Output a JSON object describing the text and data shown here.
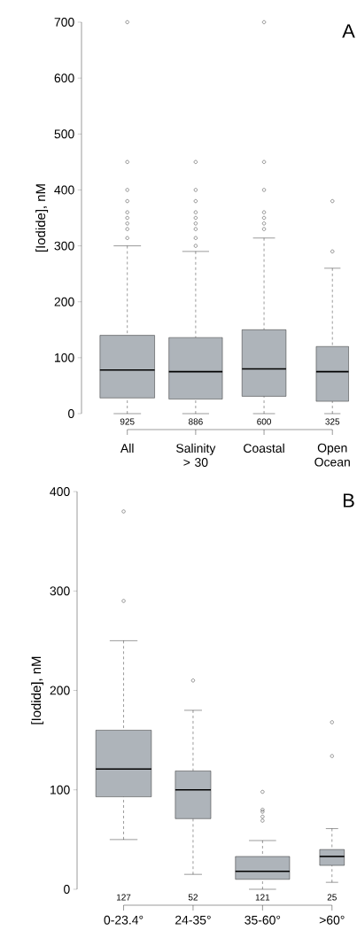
{
  "chart_data": [
    {
      "type": "box",
      "title": "A",
      "ylabel": "[Iodide], nM",
      "categories": [
        "All",
        "Salinity > 30",
        "Coastal",
        "Open Ocean"
      ],
      "color": "#aeb4ba",
      "ylim": [
        0,
        700
      ],
      "yticks": [
        0,
        100,
        200,
        300,
        400,
        500,
        600,
        700
      ],
      "boxes": [
        {
          "low": 0,
          "q1": 28,
          "median": 78,
          "q3": 140,
          "high": 300,
          "outliers": [
            314,
            330,
            340,
            350,
            360,
            380,
            400,
            450,
            700
          ]
        },
        {
          "low": 0,
          "q1": 26,
          "median": 75,
          "q3": 136,
          "high": 290,
          "outliers": [
            300,
            314,
            330,
            340,
            350,
            360,
            380,
            400,
            450
          ]
        },
        {
          "low": 0,
          "q1": 31,
          "median": 80,
          "q3": 150,
          "high": 314,
          "outliers": [
            330,
            340,
            350,
            360,
            400,
            450,
            700
          ]
        },
        {
          "low": 0,
          "q1": 22,
          "median": 75,
          "q3": 120,
          "high": 260,
          "outliers": [
            290,
            380
          ]
        }
      ],
      "annotations": [
        "925",
        "886",
        "600",
        "325"
      ]
    },
    {
      "type": "box",
      "title": "B",
      "ylabel": "[Iodide], nM",
      "categories": [
        "0-23.4°",
        "24-35°",
        "35-60°",
        ">60°"
      ],
      "color": "#aeb4ba",
      "ylim": [
        0,
        400
      ],
      "yticks": [
        0,
        100,
        200,
        300,
        400
      ],
      "boxes": [
        {
          "low": 50,
          "q1": 93,
          "median": 121,
          "q3": 160,
          "high": 250,
          "outliers": [
            290,
            380
          ]
        },
        {
          "low": 15,
          "q1": 71,
          "median": 100,
          "q3": 119,
          "high": 180,
          "outliers": [
            210
          ]
        },
        {
          "low": 0,
          "q1": 10,
          "median": 18,
          "q3": 33,
          "high": 49,
          "outliers": [
            69,
            73,
            78,
            80,
            98
          ]
        },
        {
          "low": 7,
          "q1": 24,
          "median": 33,
          "q3": 40,
          "high": 61,
          "outliers": [
            134,
            168
          ]
        }
      ],
      "annotations": [
        "127",
        "52",
        "121",
        "25"
      ]
    }
  ]
}
